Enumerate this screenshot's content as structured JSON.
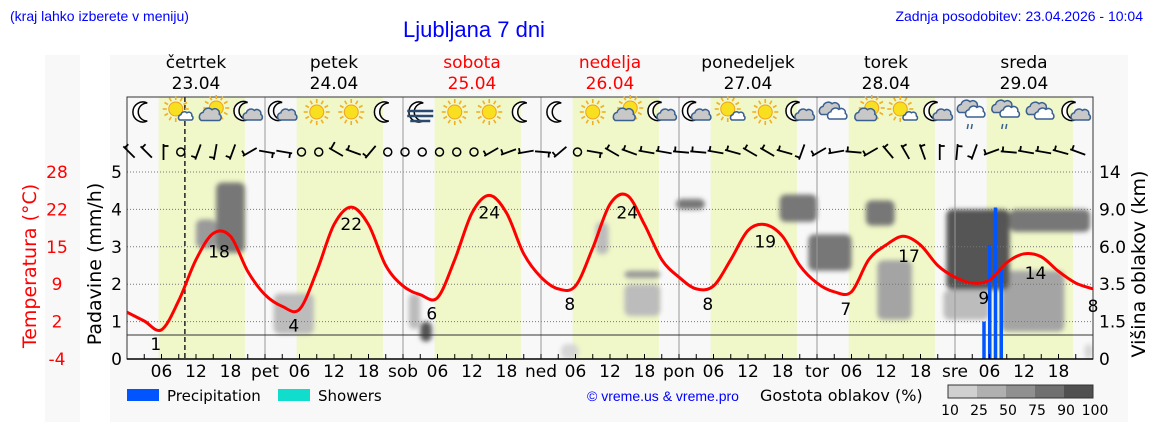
{
  "header": {
    "menu_hint": "(kraj lahko izberete v meniju)",
    "title": "Ljubljana 7 dni",
    "updated": "Zadnja posodobitev: 23.04.2026 - 10:04"
  },
  "days": [
    {
      "name": "četrtek",
      "date": "23.04",
      "weekend": false
    },
    {
      "name": "petek",
      "date": "24.04",
      "weekend": false
    },
    {
      "name": "sobota",
      "date": "25.04",
      "weekend": true
    },
    {
      "name": "nedelja",
      "date": "26.04",
      "weekend": true
    },
    {
      "name": "ponedeljek",
      "date": "27.04",
      "weekend": false
    },
    {
      "name": "torek",
      "date": "28.04",
      "weekend": false
    },
    {
      "name": "sreda",
      "date": "29.04",
      "weekend": false
    }
  ],
  "colors": {
    "temperature": "#ff0000",
    "precipitation": "#0055ff",
    "showers": "#11ddcc",
    "daytime": "#f0f7c8",
    "night": "#f8f8f8",
    "weekend_label": "#ff0000",
    "link": "#0000ff"
  },
  "chart_data": {
    "type": "line",
    "current_time": "23.04 10:04",
    "x_axis": {
      "tick_labels": [
        "06",
        "12",
        "18",
        "pet",
        "06",
        "12",
        "18",
        "sob",
        "06",
        "12",
        "18",
        "ned",
        "06",
        "12",
        "18",
        "pon",
        "06",
        "12",
        "18",
        "tor",
        "06",
        "12",
        "18",
        "sre",
        "06",
        "12",
        "18"
      ]
    },
    "y_left_temperature": {
      "label": "Temperatura (°C)",
      "ticks": [
        "28",
        "22",
        "15",
        "9",
        "2",
        "-4"
      ],
      "range": [
        -4,
        28
      ]
    },
    "y_left_precipitation": {
      "label": "Padavine (mm/h)",
      "ticks": [
        "5",
        "4",
        "3",
        "2",
        "1",
        "0"
      ],
      "range": [
        0,
        5
      ]
    },
    "y_right_cloud_height": {
      "label": "Višina oblakov (km)",
      "ticks": [
        "14",
        "9.0",
        "6.0",
        "3.5",
        "1.5",
        "0"
      ]
    },
    "grid": true,
    "temperature": {
      "times": [
        "23.04 00:00",
        "23.04 03:00",
        "23.04 06:00",
        "23.04 09:00",
        "23.04 12:00",
        "23.04 15:00",
        "23.04 18:00",
        "23.04 21:00",
        "24.04 00:00",
        "24.04 03:00",
        "24.04 06:00",
        "24.04 09:00",
        "24.04 12:00",
        "24.04 15:00",
        "24.04 18:00",
        "24.04 21:00",
        "25.04 00:00",
        "25.04 03:00",
        "25.04 06:00",
        "25.04 09:00",
        "25.04 12:00",
        "25.04 15:00",
        "25.04 18:00",
        "25.04 21:00",
        "26.04 00:00",
        "26.04 03:00",
        "26.04 06:00",
        "26.04 09:00",
        "26.04 12:00",
        "26.04 15:00",
        "26.04 18:00",
        "26.04 21:00",
        "27.04 00:00",
        "27.04 03:00",
        "27.04 06:00",
        "27.04 09:00",
        "27.04 12:00",
        "27.04 15:00",
        "27.04 18:00",
        "27.04 21:00",
        "28.04 00:00",
        "28.04 03:00",
        "28.04 06:00",
        "28.04 09:00",
        "28.04 12:00",
        "28.04 15:00",
        "28.04 18:00",
        "28.04 21:00",
        "29.04 00:00",
        "29.04 03:00",
        "29.04 06:00",
        "29.04 09:00",
        "29.04 12:00",
        "29.04 15:00",
        "29.04 18:00",
        "29.04 21:00",
        "30.04 00:00"
      ],
      "values": [
        4,
        2.5,
        1,
        6,
        13,
        17.5,
        17,
        11,
        7,
        5,
        4.5,
        11,
        19,
        22,
        19,
        12,
        8.5,
        7,
        6.5,
        13,
        21,
        24,
        21,
        14,
        10,
        8,
        8.5,
        15,
        22.5,
        24,
        19,
        13,
        10,
        8,
        8.5,
        13,
        18,
        19,
        17,
        12,
        9,
        7.5,
        7.5,
        13,
        15.5,
        17,
        15.5,
        12,
        10,
        9,
        9.5,
        12.5,
        14,
        13.5,
        11,
        9,
        8
      ]
    },
    "temperature_labels": [
      {
        "time": "23.04 05:00",
        "value": "1"
      },
      {
        "time": "23.04 16:00",
        "value": "18"
      },
      {
        "time": "24.04 05:00",
        "value": "4"
      },
      {
        "time": "24.04 15:00",
        "value": "22"
      },
      {
        "time": "25.04 05:00",
        "value": "6"
      },
      {
        "time": "25.04 15:00",
        "value": "24"
      },
      {
        "time": "26.04 05:00",
        "value": "8"
      },
      {
        "time": "26.04 15:00",
        "value": "24"
      },
      {
        "time": "27.04 05:00",
        "value": "8"
      },
      {
        "time": "27.04 15:00",
        "value": "19"
      },
      {
        "time": "28.04 05:00",
        "value": "7"
      },
      {
        "time": "28.04 16:00",
        "value": "17"
      },
      {
        "time": "29.04 05:00",
        "value": "9"
      },
      {
        "time": "29.04 14:00",
        "value": "14"
      },
      {
        "time": "30.04 00:00",
        "value": "8"
      }
    ],
    "precipitation": [
      {
        "time": "29.04 05:00",
        "value": 1.0
      },
      {
        "time": "29.04 06:00",
        "value": 3.05
      },
      {
        "time": "29.04 07:00",
        "value": 4.05
      },
      {
        "time": "29.04 08:00",
        "value": 2.4
      }
    ],
    "showers": [],
    "cloud_cover": [
      {
        "from": "23.04 12:00",
        "to": "23.04 15:30",
        "base_km": 5.9,
        "top_km": 8.2,
        "density": 50
      },
      {
        "from": "23.04 15:30",
        "to": "23.04 20:30",
        "base_km": 5.6,
        "top_km": 12.6,
        "density": 75
      },
      {
        "from": "24.04 01:30",
        "to": "24.04 08:30",
        "base_km": 1.0,
        "top_km": 3.0,
        "density": 25
      },
      {
        "from": "25.04 01:00",
        "to": "25.04 03:00",
        "base_km": 1.2,
        "top_km": 3.0,
        "density": 25
      },
      {
        "from": "25.04 03:00",
        "to": "25.04 05:00",
        "base_km": 0.7,
        "top_km": 1.5,
        "density": 90
      },
      {
        "from": "26.04 03:30",
        "to": "26.04 06:30",
        "base_km": 0.0,
        "top_km": 0.6,
        "density": 10
      },
      {
        "from": "26.04 09:30",
        "to": "26.04 11:45",
        "base_km": 5.5,
        "top_km": 8.0,
        "density": 25
      },
      {
        "from": "26.04 14:30",
        "to": "26.04 20:45",
        "base_km": 1.8,
        "top_km": 3.5,
        "density": 25
      },
      {
        "from": "26.04 14:30",
        "to": "26.04 20:45",
        "base_km": 3.9,
        "top_km": 4.4,
        "density": 50
      },
      {
        "from": "26.04 23:30",
        "to": "27.04 04:30",
        "base_km": 9.0,
        "top_km": 10.4,
        "density": 75
      },
      {
        "from": "27.04 17:30",
        "to": "28.04 00:00",
        "base_km": 8.0,
        "top_km": 11.0,
        "density": 75
      },
      {
        "from": "27.04 22:30",
        "to": "28.04 06:00",
        "base_km": 4.4,
        "top_km": 7.0,
        "density": 75
      },
      {
        "from": "28.04 08:30",
        "to": "28.04 13:30",
        "base_km": 7.7,
        "top_km": 10.2,
        "density": 75
      },
      {
        "from": "28.04 10:30",
        "to": "28.04 16:30",
        "base_km": 1.6,
        "top_km": 5.1,
        "density": 40
      },
      {
        "from": "28.04 22:00",
        "to": "29.04 06:00",
        "base_km": 1.6,
        "top_km": 3.2,
        "density": 25
      },
      {
        "from": "29.04 08:00",
        "to": "29.04 19:00",
        "base_km": 1.1,
        "top_km": 4.4,
        "density": 40
      },
      {
        "from": "28.04 22:30",
        "to": "29.04 09:30",
        "base_km": 3.2,
        "top_km": 9.0,
        "density": 90
      },
      {
        "from": "29.04 09:30",
        "to": "29.04 23:30",
        "base_km": 7.2,
        "top_km": 9.0,
        "density": 75
      },
      {
        "from": "29.04 22:30",
        "to": "30.04 00:00",
        "base_km": 0.0,
        "top_km": 0.6,
        "density": 10
      }
    ],
    "weather_icons": [
      "moon",
      "sun-small-cloud",
      "sun-cloud",
      "moon-cloud",
      "moon-cloud",
      "sun",
      "sun",
      "moon",
      "moon-fog",
      "sun",
      "sun",
      "moon",
      "moon",
      "sun",
      "sun-cloud",
      "moon-cloud",
      "moon-cloud",
      "sun-small-cloud",
      "sun",
      "moon-cloud",
      "cloud",
      "sun-cloud",
      "sun-small-cloud",
      "moon-cloud",
      "cloud-rain",
      "cloud-rain",
      "cloud",
      "moon-cloud"
    ],
    "wind": [
      {
        "dir": 315,
        "speed": 5
      },
      {
        "dir": 315,
        "speed": 5
      },
      {
        "dir": 0,
        "speed": 5
      },
      {
        "dir": 0,
        "speed": 0
      },
      {
        "dir": 200,
        "speed": 5
      },
      {
        "dir": 190,
        "speed": 5
      },
      {
        "dir": 200,
        "speed": 5
      },
      {
        "dir": 240,
        "speed": 5
      },
      {
        "dir": 100,
        "speed": 5
      },
      {
        "dir": 100,
        "speed": 5
      },
      {
        "dir": 0,
        "speed": 0
      },
      {
        "dir": 0,
        "speed": 0
      },
      {
        "dir": 300,
        "speed": 10
      },
      {
        "dir": 290,
        "speed": 5
      },
      {
        "dir": 220,
        "speed": 5
      },
      {
        "dir": 0,
        "speed": 0
      },
      {
        "dir": 0,
        "speed": 0
      },
      {
        "dir": 0,
        "speed": 0
      },
      {
        "dir": 0,
        "speed": 0
      },
      {
        "dir": 0,
        "speed": 0
      },
      {
        "dir": 0,
        "speed": 0
      },
      {
        "dir": 240,
        "speed": 5
      },
      {
        "dir": 250,
        "speed": 5
      },
      {
        "dir": 260,
        "speed": 5
      },
      {
        "dir": 95,
        "speed": 5
      },
      {
        "dir": 230,
        "speed": 5
      },
      {
        "dir": 0,
        "speed": 0
      },
      {
        "dir": 100,
        "speed": 5
      },
      {
        "dir": 300,
        "speed": 5
      },
      {
        "dir": 290,
        "speed": 5
      },
      {
        "dir": 280,
        "speed": 5
      },
      {
        "dir": 280,
        "speed": 5
      },
      {
        "dir": 275,
        "speed": 5
      },
      {
        "dir": 275,
        "speed": 5
      },
      {
        "dir": 280,
        "speed": 5
      },
      {
        "dir": 285,
        "speed": 5
      },
      {
        "dir": 300,
        "speed": 5
      },
      {
        "dir": 300,
        "speed": 5
      },
      {
        "dir": 285,
        "speed": 5
      },
      {
        "dir": 200,
        "speed": 5
      },
      {
        "dir": 240,
        "speed": 5
      },
      {
        "dir": 260,
        "speed": 5
      },
      {
        "dir": 275,
        "speed": 5
      },
      {
        "dir": 240,
        "speed": 5
      },
      {
        "dir": 320,
        "speed": 5
      },
      {
        "dir": 330,
        "speed": 5
      },
      {
        "dir": 340,
        "speed": 5
      },
      {
        "dir": 0,
        "speed": 5
      },
      {
        "dir": 5,
        "speed": 5
      },
      {
        "dir": 200,
        "speed": 5
      },
      {
        "dir": 250,
        "speed": 5
      },
      {
        "dir": 275,
        "speed": 5
      },
      {
        "dir": 280,
        "speed": 5
      },
      {
        "dir": 280,
        "speed": 5
      },
      {
        "dir": 285,
        "speed": 5
      },
      {
        "dir": 290,
        "speed": 5
      }
    ]
  },
  "legend": {
    "precipitation_label": "Precipitation",
    "showers_label": "Showers",
    "copyright": "© vreme.us & vreme.pro",
    "cloud_density_label": "Gostota oblakov (%)",
    "cloud_density_ticks": [
      "10",
      "25",
      "50",
      "75",
      "90",
      "100"
    ],
    "cloud_density_colors": [
      "#d0d0d0",
      "#b0b0b0",
      "#909090",
      "#707070",
      "#505050"
    ]
  }
}
